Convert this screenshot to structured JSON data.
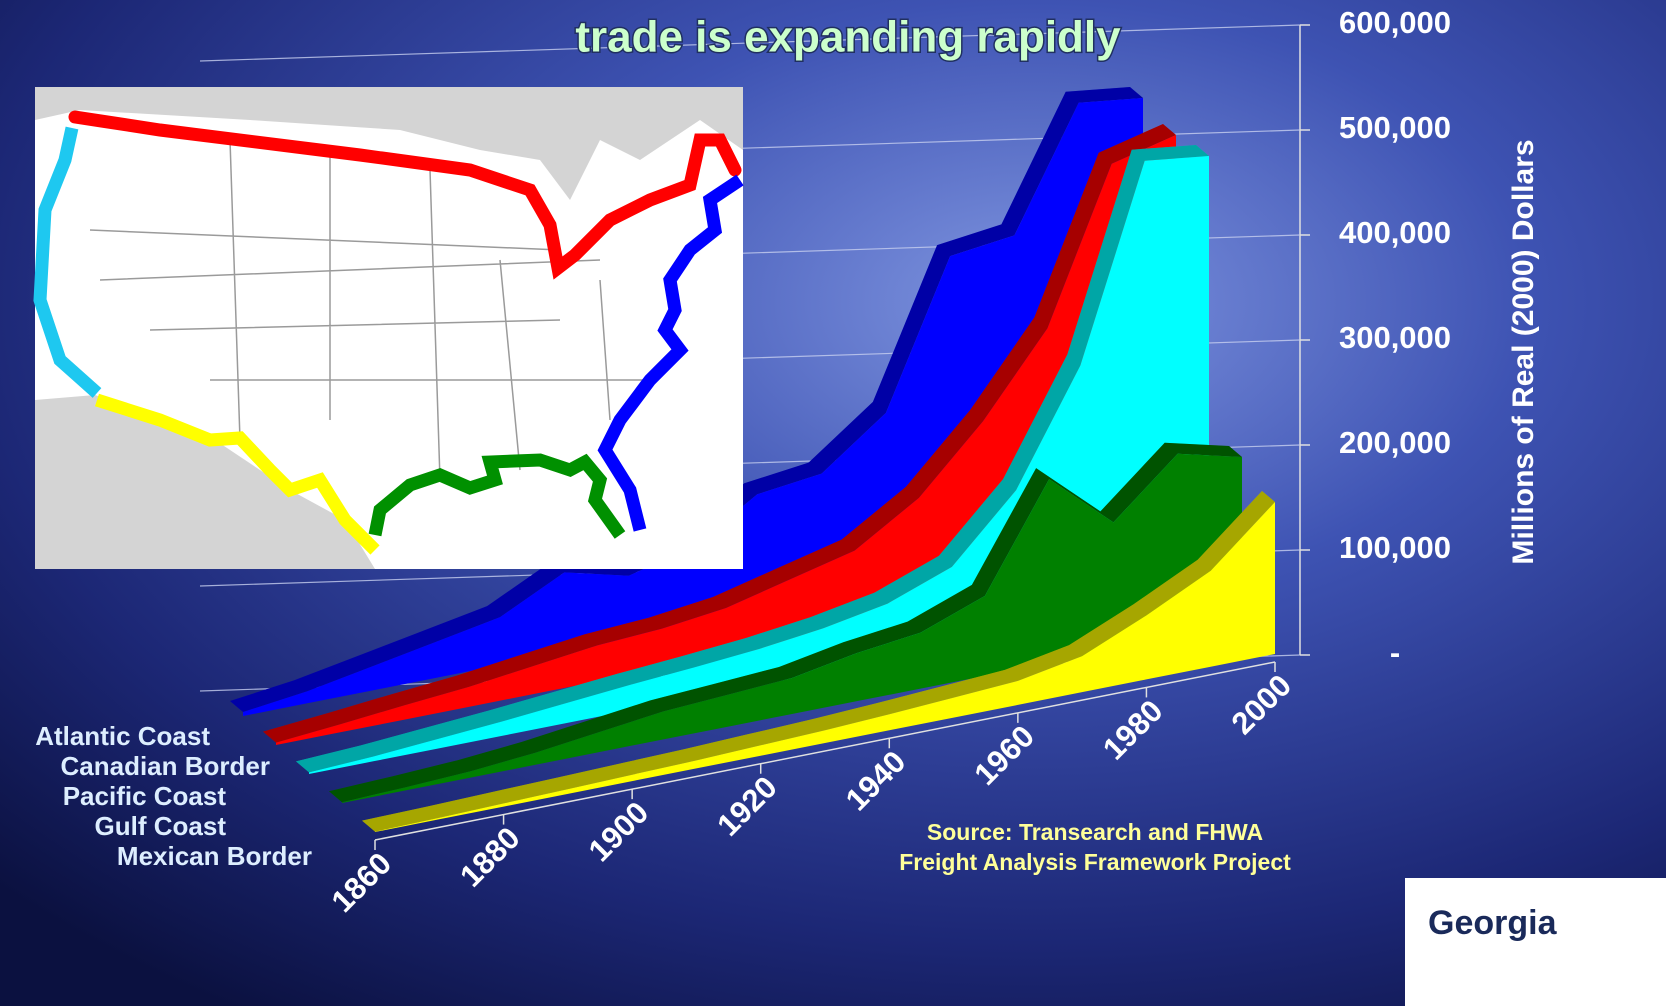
{
  "chart_data": {
    "type": "area3d",
    "title": "trade is expanding rapidly",
    "y_axis_label": "Millions of Real (2000) Dollars",
    "source": [
      "Source: Transearch and FHWA",
      "Freight Analysis Framework Project"
    ],
    "logo_text": "Georgia",
    "x": [
      1860,
      1870,
      1880,
      1890,
      1900,
      1910,
      1920,
      1930,
      1940,
      1950,
      1960,
      1970,
      1980,
      1990,
      2000
    ],
    "xlim": [
      1860,
      2000
    ],
    "xticks": [
      1860,
      1880,
      1900,
      1920,
      1940,
      1960,
      1980,
      2000
    ],
    "ylim": [
      0,
      600000
    ],
    "yticks": [
      {
        "value": 0,
        "label": "-"
      },
      {
        "value": 100000,
        "label": "100,000"
      },
      {
        "value": 200000,
        "label": "200,000"
      },
      {
        "value": 300000,
        "label": "300,000"
      },
      {
        "value": 400000,
        "label": "400,000"
      },
      {
        "value": 500000,
        "label": "500,000"
      },
      {
        "value": 600000,
        "label": "600,000"
      }
    ],
    "grid": true,
    "series": [
      {
        "name": "Atlantic Coast",
        "color": "#0000ff",
        "values": [
          5000,
          15000,
          30000,
          45000,
          60000,
          100000,
          80000,
          100000,
          150000,
          160000,
          220000,
          400000,
          410000,
          560000,
          550000
        ]
      },
      {
        "name": "Canadian Border",
        "color": "#ff0000",
        "values": [
          3000,
          10000,
          18000,
          25000,
          35000,
          45000,
          50000,
          60000,
          80000,
          100000,
          150000,
          230000,
          330000,
          520000,
          540000
        ]
      },
      {
        "name": "Pacific Coast",
        "color": "#00ffff",
        "values": [
          2000,
          6000,
          12000,
          18000,
          25000,
          32000,
          38000,
          45000,
          55000,
          70000,
          100000,
          180000,
          320000,
          560000,
          550000
        ]
      },
      {
        "name": "Gulf Coast",
        "color": "#008000",
        "values": [
          1000,
          4000,
          8000,
          15000,
          25000,
          35000,
          40000,
          45000,
          60000,
          70000,
          100000,
          230000,
          160000,
          230000,
          210000
        ]
      },
      {
        "name": "Mexican Border",
        "color": "#ffff00",
        "values": [
          500,
          2000,
          4000,
          6000,
          8000,
          10000,
          13000,
          16000,
          20000,
          25000,
          30000,
          45000,
          80000,
          120000,
          190000
        ]
      }
    ]
  }
}
